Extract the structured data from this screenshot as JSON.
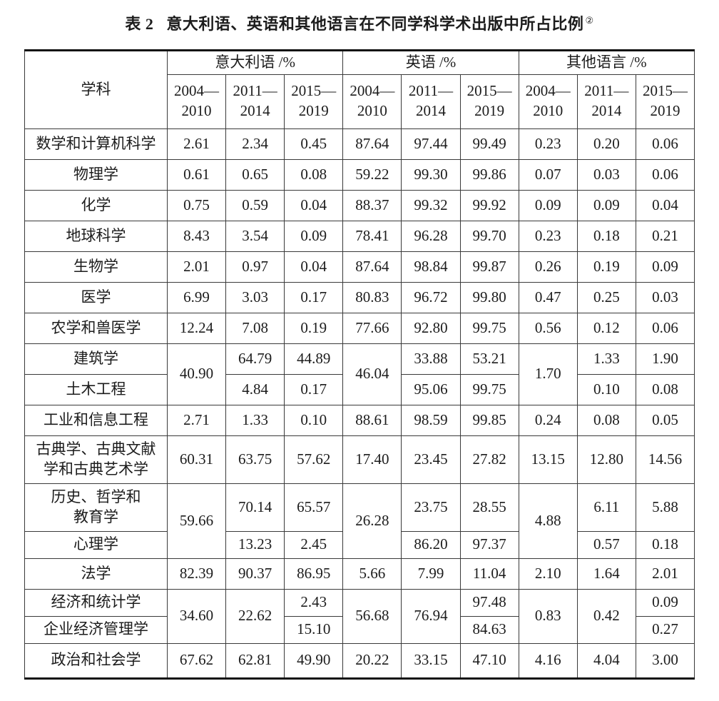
{
  "title": {
    "label": "表 2",
    "text": "意大利语、英语和其他语言在不同学科学术出版中所占比例",
    "footnote_mark": "②"
  },
  "table": {
    "header": {
      "subject": "学科",
      "groups": [
        "意大利语 /%",
        "英语 /%",
        "其他语言 /%"
      ],
      "periods": [
        "2004—\n2010",
        "2011—\n2014",
        "2015—\n2019"
      ]
    },
    "rows": [
      {
        "cells": [
          "数学和计算机科学",
          "2.61",
          "2.34",
          "0.45",
          "87.64",
          "97.44",
          "99.49",
          "0.23",
          "0.20",
          "0.06"
        ]
      },
      {
        "cells": [
          "物理学",
          "0.61",
          "0.65",
          "0.08",
          "59.22",
          "99.30",
          "99.86",
          "0.07",
          "0.03",
          "0.06"
        ]
      },
      {
        "cells": [
          "化学",
          "0.75",
          "0.59",
          "0.04",
          "88.37",
          "99.32",
          "99.92",
          "0.09",
          "0.09",
          "0.04"
        ]
      },
      {
        "cells": [
          "地球科学",
          "8.43",
          "3.54",
          "0.09",
          "78.41",
          "96.28",
          "99.70",
          "0.23",
          "0.18",
          "0.21"
        ]
      },
      {
        "cells": [
          "生物学",
          "2.01",
          "0.97",
          "0.04",
          "87.64",
          "98.84",
          "99.87",
          "0.26",
          "0.19",
          "0.09"
        ]
      },
      {
        "cells": [
          "医学",
          "6.99",
          "3.03",
          "0.17",
          "80.83",
          "96.72",
          "99.80",
          "0.47",
          "0.25",
          "0.03"
        ]
      },
      {
        "cells": [
          "农学和兽医学",
          "12.24",
          "7.08",
          "0.19",
          "77.66",
          "92.80",
          "99.75",
          "0.56",
          "0.12",
          "0.06"
        ]
      },
      {
        "cells": [
          "建筑学",
          "40.90",
          "64.79",
          "44.89",
          "46.04",
          "33.88",
          "53.21",
          "1.70",
          "1.33",
          "1.90"
        ]
      },
      {
        "cells": [
          "土木工程",
          "4.84",
          "0.17",
          "95.06",
          "99.75",
          "0.10",
          "0.08"
        ]
      },
      {
        "cells": [
          "工业和信息工程",
          "2.71",
          "1.33",
          "0.10",
          "88.61",
          "98.59",
          "99.85",
          "0.24",
          "0.08",
          "0.05"
        ]
      },
      {
        "cells": [
          "古典学、古典文献\n学和古典艺术学",
          "60.31",
          "63.75",
          "57.62",
          "17.40",
          "23.45",
          "27.82",
          "13.15",
          "12.80",
          "14.56"
        ]
      },
      {
        "cells": [
          "历史、哲学和\n教育学",
          "59.66",
          "70.14",
          "65.57",
          "26.28",
          "23.75",
          "28.55",
          "4.88",
          "6.11",
          "5.88"
        ]
      },
      {
        "cells": [
          "心理学",
          "13.23",
          "2.45",
          "86.20",
          "97.37",
          "0.57",
          "0.18"
        ]
      },
      {
        "cells": [
          "法学",
          "82.39",
          "90.37",
          "86.95",
          "5.66",
          "7.99",
          "11.04",
          "2.10",
          "1.64",
          "2.01"
        ]
      },
      {
        "cells": [
          "经济和统计学",
          "34.60",
          "22.62",
          "2.43",
          "56.68",
          "76.94",
          "97.48",
          "0.83",
          "0.42",
          "0.09"
        ]
      },
      {
        "cells": [
          "企业经济管理学",
          "15.10",
          "84.63",
          "0.27"
        ]
      },
      {
        "cells": [
          "政治和社会学",
          "67.62",
          "62.81",
          "49.90",
          "20.22",
          "33.15",
          "47.10",
          "4.16",
          "4.04",
          "3.00"
        ]
      }
    ]
  }
}
